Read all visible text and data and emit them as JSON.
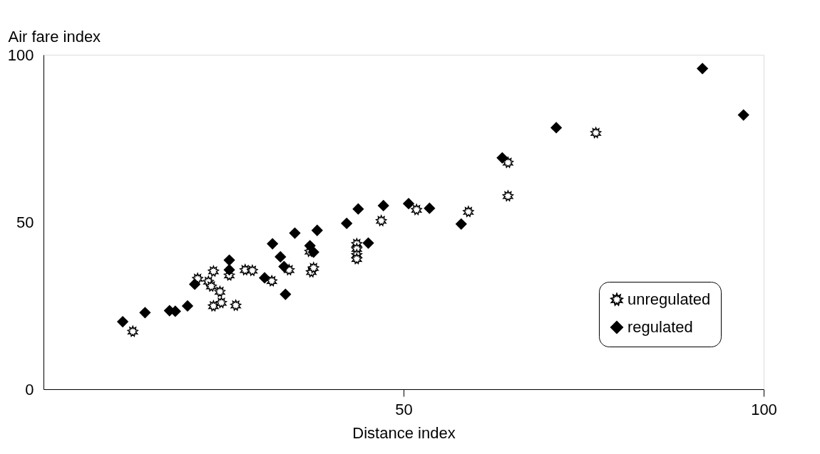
{
  "chart_data": {
    "type": "scatter",
    "xlabel": "Distance index",
    "ylabel": "Air fare index",
    "xlim": [
      0,
      100
    ],
    "ylim": [
      0,
      100
    ],
    "xticks": [
      50,
      100
    ],
    "yticks": [
      0,
      50,
      100
    ],
    "grid": false,
    "legend": "bottom right",
    "series": [
      {
        "name": "unregulated",
        "color": "#000000",
        "marker": "star",
        "x": [
          12.4,
          21.4,
          22.9,
          23.3,
          23.6,
          23.6,
          24.5,
          24.7,
          25.8,
          26.7,
          28.0,
          29.0,
          31.7,
          34.1,
          37.0,
          37.2,
          37.5,
          43.5,
          43.5,
          43.5,
          43.5,
          46.9,
          51.8,
          59.0,
          64.5,
          64.5,
          76.7
        ],
        "values": [
          17.3,
          33.1,
          32.2,
          30.8,
          35.3,
          24.9,
          29.2,
          25.9,
          34.1,
          25.1,
          35.7,
          35.5,
          32.4,
          35.7,
          41.2,
          35.1,
          36.3,
          43.5,
          42.0,
          40.2,
          39.0,
          50.4,
          53.7,
          53.1,
          67.8,
          57.8,
          76.7
        ]
      },
      {
        "name": "regulated",
        "color": "#000000",
        "marker": "diamond",
        "x": [
          11.0,
          14.1,
          17.5,
          18.3,
          20.0,
          21.0,
          25.8,
          25.8,
          30.7,
          31.8,
          32.9,
          33.4,
          33.6,
          34.9,
          37.0,
          37.5,
          38.0,
          42.1,
          43.7,
          45.1,
          47.2,
          50.7,
          53.6,
          58.0,
          63.7,
          71.2,
          91.5,
          97.2
        ],
        "values": [
          20.2,
          22.9,
          23.5,
          23.3,
          24.9,
          31.4,
          38.6,
          35.7,
          33.3,
          43.5,
          39.6,
          36.7,
          28.4,
          46.7,
          42.9,
          41.0,
          47.5,
          49.6,
          53.9,
          43.7,
          54.9,
          55.5,
          54.1,
          49.4,
          69.2,
          78.2,
          95.9,
          82.0
        ]
      }
    ]
  }
}
